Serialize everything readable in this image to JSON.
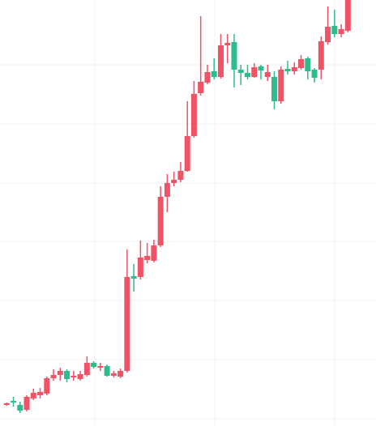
{
  "chart_data": {
    "type": "candlestick",
    "x": [
      0,
      1,
      2,
      3,
      4,
      5,
      6,
      7,
      8,
      9,
      10,
      11,
      12,
      13,
      14,
      15,
      16,
      17,
      18,
      19,
      20,
      21,
      22,
      23,
      24,
      25,
      26,
      27,
      28,
      29,
      30,
      31,
      32,
      33,
      34,
      35,
      36,
      37,
      38,
      39,
      40,
      41,
      42,
      43,
      44,
      45,
      46,
      47,
      48,
      49,
      50,
      51
    ],
    "open": [
      26,
      31,
      26,
      20,
      34,
      38,
      40,
      59,
      63,
      68,
      60,
      58,
      63,
      78,
      72,
      74,
      62,
      61,
      68,
      185,
      184,
      205,
      204,
      223,
      283,
      300,
      304,
      315,
      358,
      411,
      424,
      438,
      431,
      470,
      474,
      440,
      436,
      431,
      444,
      431,
      431,
      401,
      441,
      438,
      442,
      454,
      440,
      440,
      474,
      494,
      484,
      488
    ],
    "high": [
      29,
      36,
      30,
      38,
      46,
      47,
      61,
      70,
      72,
      70,
      68,
      68,
      86,
      80,
      78,
      76,
      68,
      71,
      218,
      200,
      229,
      226,
      230,
      296,
      311,
      314,
      326,
      401,
      426,
      506,
      446,
      454,
      484,
      484,
      484,
      446,
      446,
      448,
      446,
      446,
      438,
      444,
      451,
      449,
      458,
      456,
      442,
      481,
      518,
      514,
      496,
      526
    ],
    "low": [
      25,
      24,
      16,
      18,
      32,
      34,
      38,
      56,
      56,
      54,
      56,
      56,
      61,
      71,
      68,
      61,
      60,
      59,
      66,
      166,
      181,
      201,
      202,
      221,
      264,
      296,
      301,
      314,
      356,
      408,
      422,
      428,
      429,
      448,
      418,
      421,
      428,
      430,
      428,
      426,
      391,
      398,
      434,
      434,
      440,
      428,
      424,
      428,
      471,
      480,
      480,
      486
    ],
    "close": [
      28,
      29,
      19,
      36,
      41,
      42,
      59,
      63,
      68,
      58,
      62,
      64,
      78,
      73,
      74,
      62,
      65,
      68,
      184,
      182,
      208,
      210,
      223,
      283,
      300,
      304,
      315,
      358,
      410,
      425,
      437,
      431,
      470,
      473,
      440,
      436,
      431,
      443,
      439,
      437,
      401,
      440,
      438,
      443,
      453,
      438,
      430,
      475,
      493,
      484,
      490,
      526
    ],
    "up_color": "#f05266",
    "down_color": "#2dbd8c",
    "xlim": [
      -1,
      55.2
    ],
    "xticks": [
      13.2,
      31.1,
      49
    ],
    "ylim": [
      0,
      526
    ],
    "yticks": [
      9,
      82,
      155,
      228,
      300,
      373,
      446
    ],
    "grid": true
  }
}
